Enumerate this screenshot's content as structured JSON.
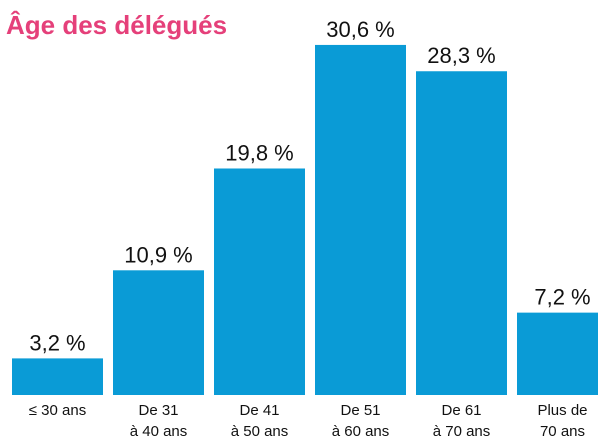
{
  "chart_data": {
    "type": "bar",
    "title": "Âge des délégués",
    "categories": [
      "≤ 30 ans",
      "De 31\nà 40 ans",
      "De 41\nà 50 ans",
      "De 51\nà 60 ans",
      "De 61\nà 70 ans",
      "Plus de\n70 ans"
    ],
    "values": [
      3.2,
      10.9,
      19.8,
      30.6,
      28.3,
      7.2
    ],
    "value_labels": [
      "3,2 %",
      "10,9 %",
      "19,8 %",
      "30,6 %",
      "28,3 %",
      "7,2 %"
    ],
    "color": "#0a9bd6"
  }
}
